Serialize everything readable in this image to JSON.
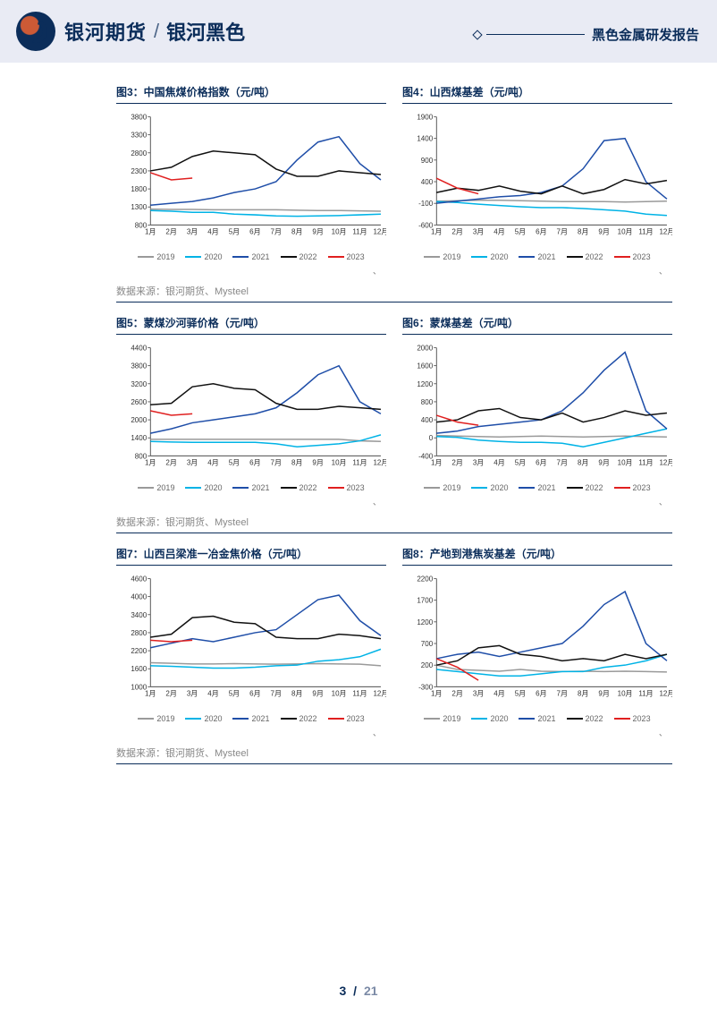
{
  "header": {
    "brand_main": "银河期货",
    "brand_sub": "银河黑色",
    "right_title": "黑色金属研发报告"
  },
  "source_text": "数据来源：银河期货、Mysteel",
  "footer": {
    "page": "3",
    "sep": "/",
    "total": "21"
  },
  "x_labels": [
    "1月",
    "2月",
    "3月",
    "4月",
    "5月",
    "6月",
    "7月",
    "8月",
    "9月",
    "10月",
    "11月",
    "12月"
  ],
  "legend_series": [
    {
      "name": "2019",
      "color": "#9a9a9a"
    },
    {
      "name": "2020",
      "color": "#00b3e6"
    },
    {
      "name": "2021",
      "color": "#1f4ea8"
    },
    {
      "name": "2022",
      "color": "#111111"
    },
    {
      "name": "2023",
      "color": "#e02020"
    }
  ],
  "charts": [
    {
      "id": "c3",
      "title": "图3：中国焦煤价格指数（元/吨）",
      "ylim": [
        800,
        3800
      ],
      "yticks": [
        800,
        1300,
        1800,
        2300,
        2800,
        3300,
        3800
      ],
      "series": {
        "2019": [
          1240,
          1230,
          1230,
          1220,
          1220,
          1220,
          1220,
          1210,
          1200,
          1200,
          1190,
          1180
        ],
        "2020": [
          1200,
          1180,
          1150,
          1150,
          1100,
          1080,
          1050,
          1040,
          1050,
          1060,
          1080,
          1100
        ],
        "2021": [
          1350,
          1400,
          1450,
          1550,
          1700,
          1800,
          2000,
          2600,
          3100,
          3250,
          2500,
          2050
        ],
        "2022": [
          2300,
          2400,
          2700,
          2850,
          2800,
          2750,
          2350,
          2150,
          2150,
          2300,
          2250,
          2200
        ],
        "2023": [
          2250,
          2050,
          2100,
          null,
          null,
          null,
          null,
          null,
          null,
          null,
          null,
          null
        ]
      }
    },
    {
      "id": "c4",
      "title": "图4：山西煤基差（元/吨）",
      "ylim": [
        -600,
        1900
      ],
      "yticks": [
        -600,
        -100,
        400,
        900,
        1400,
        1900
      ],
      "series": {
        "2019": [
          -50,
          -40,
          -30,
          -30,
          -40,
          -50,
          -60,
          -60,
          -60,
          -70,
          -60,
          -50
        ],
        "2020": [
          -60,
          -80,
          -120,
          -150,
          -180,
          -200,
          -200,
          -220,
          -250,
          -280,
          -350,
          -380
        ],
        "2021": [
          -100,
          -50,
          0,
          50,
          80,
          150,
          300,
          700,
          1350,
          1400,
          400,
          0
        ],
        "2022": [
          150,
          250,
          200,
          300,
          180,
          120,
          300,
          120,
          220,
          450,
          350,
          430
        ],
        "2023": [
          480,
          250,
          120,
          null,
          null,
          null,
          null,
          null,
          null,
          null,
          null,
          null
        ]
      }
    },
    {
      "id": "c5",
      "title": "图5：蒙煤沙河驿价格（元/吨）",
      "ylim": [
        800,
        4400
      ],
      "yticks": [
        800,
        1400,
        2000,
        2600,
        3200,
        3800,
        4400
      ],
      "series": {
        "2019": [
          1350,
          1350,
          1350,
          1350,
          1350,
          1350,
          1350,
          1350,
          1350,
          1350,
          1300,
          1280
        ],
        "2020": [
          1280,
          1260,
          1250,
          1250,
          1250,
          1250,
          1200,
          1100,
          1150,
          1200,
          1300,
          1500
        ],
        "2021": [
          1550,
          1700,
          1900,
          2000,
          2100,
          2200,
          2400,
          2900,
          3500,
          3800,
          2600,
          2200
        ],
        "2022": [
          2500,
          2550,
          3100,
          3200,
          3050,
          3000,
          2550,
          2350,
          2350,
          2450,
          2400,
          2350
        ],
        "2023": [
          2300,
          2150,
          2200,
          null,
          null,
          null,
          null,
          null,
          null,
          null,
          null,
          null
        ]
      }
    },
    {
      "id": "c6",
      "title": "图6：蒙煤基差（元/吨）",
      "ylim": [
        -400,
        2000
      ],
      "yticks": [
        -400,
        0,
        400,
        800,
        1200,
        1600,
        2000
      ],
      "series": {
        "2019": [
          50,
          40,
          30,
          20,
          30,
          40,
          30,
          20,
          30,
          40,
          30,
          20
        ],
        "2020": [
          30,
          10,
          -50,
          -80,
          -100,
          -100,
          -120,
          -200,
          -100,
          0,
          100,
          200
        ],
        "2021": [
          100,
          150,
          250,
          300,
          350,
          400,
          600,
          1000,
          1500,
          1900,
          600,
          200
        ],
        "2022": [
          350,
          400,
          600,
          650,
          450,
          400,
          550,
          350,
          450,
          600,
          500,
          550
        ],
        "2023": [
          500,
          350,
          280,
          null,
          null,
          null,
          null,
          null,
          null,
          null,
          null,
          null
        ]
      }
    },
    {
      "id": "c7",
      "title": "图7：山西吕梁准一冶金焦价格（元/吨）",
      "ylim": [
        1000,
        4600
      ],
      "yticks": [
        1000,
        1600,
        2200,
        2800,
        3400,
        4000,
        4600
      ],
      "series": {
        "2019": [
          1800,
          1780,
          1760,
          1760,
          1770,
          1760,
          1750,
          1760,
          1770,
          1760,
          1750,
          1700
        ],
        "2020": [
          1700,
          1680,
          1650,
          1620,
          1620,
          1650,
          1700,
          1720,
          1850,
          1900,
          2000,
          2250
        ],
        "2021": [
          2300,
          2450,
          2600,
          2500,
          2650,
          2800,
          2900,
          3400,
          3900,
          4050,
          3200,
          2700
        ],
        "2022": [
          2650,
          2750,
          3300,
          3350,
          3150,
          3100,
          2650,
          2600,
          2600,
          2750,
          2700,
          2600
        ],
        "2023": [
          2550,
          2500,
          2550,
          null,
          null,
          null,
          null,
          null,
          null,
          null,
          null,
          null
        ]
      }
    },
    {
      "id": "c8",
      "title": "图8：产地到港焦炭基差（元/吨）",
      "ylim": [
        -300,
        2200
      ],
      "yticks": [
        -300,
        200,
        700,
        1200,
        1700,
        2200
      ],
      "series": {
        "2019": [
          200,
          100,
          80,
          60,
          100,
          60,
          50,
          60,
          50,
          60,
          50,
          40
        ],
        "2020": [
          100,
          50,
          0,
          -50,
          -50,
          0,
          50,
          50,
          150,
          200,
          300,
          450
        ],
        "2021": [
          350,
          450,
          500,
          400,
          500,
          600,
          700,
          1100,
          1600,
          1900,
          700,
          300
        ],
        "2022": [
          200,
          300,
          600,
          650,
          450,
          400,
          300,
          350,
          300,
          450,
          350,
          450
        ],
        "2023": [
          350,
          150,
          -150,
          null,
          null,
          null,
          null,
          null,
          null,
          null,
          null,
          null
        ]
      }
    }
  ],
  "style": {
    "title_color": "#0b2d5a",
    "grid_color": "#dddddd",
    "axis_color": "#333333",
    "line_width": 1.5,
    "font_size_axis": 8
  }
}
